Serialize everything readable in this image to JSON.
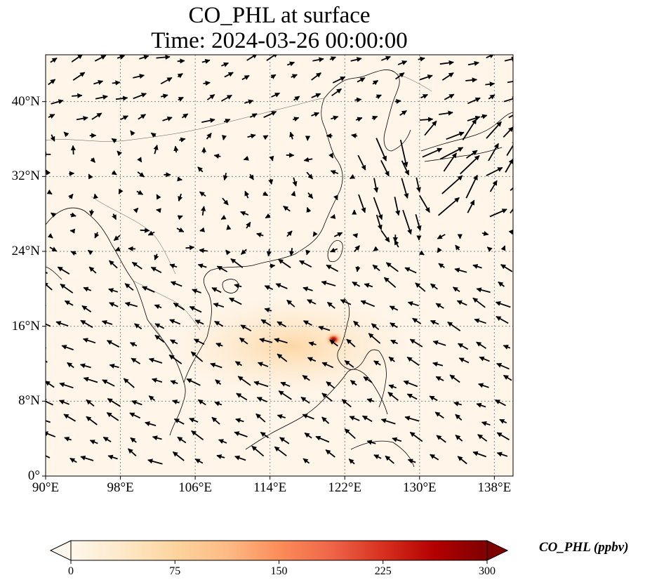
{
  "title_line1": "CO_PHL at surface",
  "title_line2": "Time: 2024-03-26 00:00:00",
  "map": {
    "lon_range": [
      90,
      140
    ],
    "lat_range": [
      0,
      45
    ],
    "lon_ticks": [
      {
        "value": 90,
        "label": "90°E"
      },
      {
        "value": 98,
        "label": "98°E"
      },
      {
        "value": 106,
        "label": "106°E"
      },
      {
        "value": 114,
        "label": "114°E"
      },
      {
        "value": 122,
        "label": "122°E"
      },
      {
        "value": 130,
        "label": "130°E"
      },
      {
        "value": 138,
        "label": "138°E"
      }
    ],
    "lat_ticks": [
      {
        "value": 0,
        "label": "0°"
      },
      {
        "value": 8,
        "label": "8°N"
      },
      {
        "value": 16,
        "label": "16°N"
      },
      {
        "value": 24,
        "label": "24°N"
      },
      {
        "value": 32,
        "label": "32°N"
      },
      {
        "value": 40,
        "label": "40°N"
      }
    ],
    "background_color": "#fff5e9",
    "gridline_color": "#888888",
    "plume": {
      "center_lon": 120.8,
      "center_lat": 14.6,
      "peak_ppbv": 300
    }
  },
  "colorbar": {
    "label": "CO_PHL (ppbv)",
    "colormap": "OrRd",
    "min": 0,
    "max": 300,
    "extend": "both",
    "ticks": [
      {
        "value": 0,
        "label": "0"
      },
      {
        "value": 75,
        "label": "75"
      },
      {
        "value": 150,
        "label": "150"
      },
      {
        "value": 225,
        "label": "225"
      },
      {
        "value": 300,
        "label": "300"
      }
    ],
    "colors": [
      "#fff7ec",
      "#fee8c8",
      "#fdd49e",
      "#fdbb84",
      "#fc8d59",
      "#ef6548",
      "#d7301f",
      "#b30000",
      "#7f0000"
    ]
  }
}
